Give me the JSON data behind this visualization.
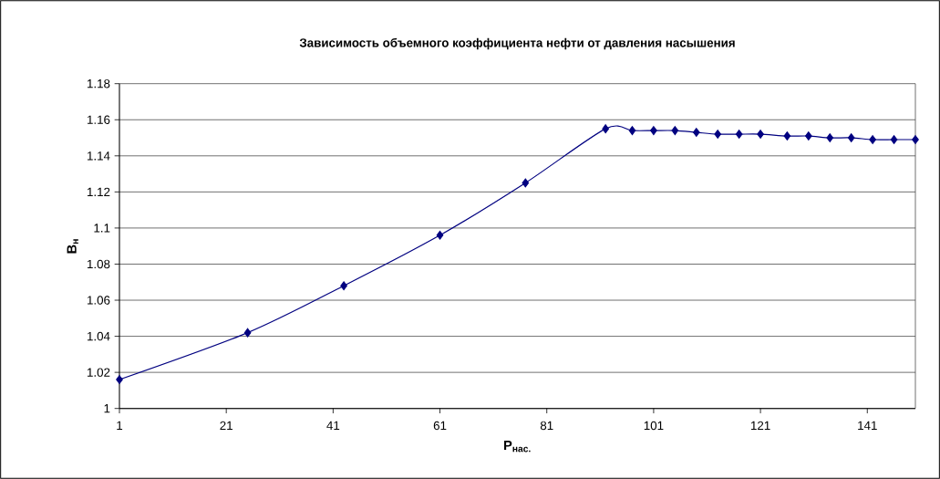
{
  "chart_data": {
    "type": "line",
    "title": "Зависимость объемного коэффициента нефти от давления насышения",
    "xlabel": "P$_{нас.}$",
    "ylabel": "B$_{н}$",
    "x": [
      1,
      25,
      43,
      61,
      77,
      92,
      97,
      101,
      105,
      109,
      113,
      117,
      121,
      126,
      130,
      134,
      138,
      142,
      146,
      150
    ],
    "series": [
      {
        "color": "#000080",
        "values": [
          1.016,
          1.042,
          1.068,
          1.096,
          1.125,
          1.155,
          1.154,
          1.154,
          1.154,
          1.153,
          1.152,
          1.152,
          1.152,
          1.151,
          1.151,
          1.15,
          1.15,
          1.149,
          1.149,
          1.149
        ]
      }
    ],
    "xlim": [
      1,
      150
    ],
    "ylim": [
      1,
      1.18
    ],
    "xticks": [
      1,
      21,
      41,
      61,
      81,
      101,
      121,
      141
    ],
    "yticks": [
      1,
      1.02,
      1.04,
      1.06,
      1.08,
      1.1,
      1.12,
      1.14,
      1.16,
      1.18
    ],
    "grid": "y",
    "marker": "diamond",
    "line_style": "solid"
  }
}
